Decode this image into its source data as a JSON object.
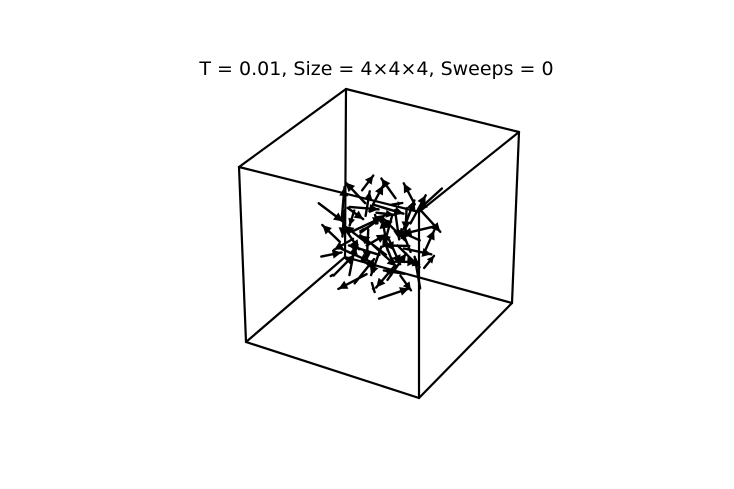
{
  "title": "T = 0.01, Size = 4×4×4, Sweeps = 0",
  "chart_data": {
    "type": "3d-quiver",
    "lattice_size": [
      4,
      4,
      4
    ],
    "temperature": 0.01,
    "sweeps": 0,
    "grid": false,
    "axes_visible": false,
    "box_visible": true,
    "line_color": "#000000",
    "spins": [
      {
        "x": 0,
        "y": 0,
        "z": 0,
        "sx": -0.48,
        "sy": 0.7,
        "sz": -0.52
      },
      {
        "x": 0,
        "y": 0,
        "z": 1,
        "sx": 0.85,
        "sy": -0.2,
        "sz": 0.48
      },
      {
        "x": 0,
        "y": 0,
        "z": 2,
        "sx": -0.3,
        "sy": -0.55,
        "sz": 0.78
      },
      {
        "x": 0,
        "y": 0,
        "z": 3,
        "sx": 0.62,
        "sy": 0.4,
        "sz": -0.67
      },
      {
        "x": 0,
        "y": 1,
        "z": 0,
        "sx": 0.2,
        "sy": 0.92,
        "sz": 0.34
      },
      {
        "x": 0,
        "y": 1,
        "z": 1,
        "sx": -0.75,
        "sy": 0.1,
        "sz": -0.65
      },
      {
        "x": 0,
        "y": 1,
        "z": 2,
        "sx": 0.4,
        "sy": -0.8,
        "sz": -0.44
      },
      {
        "x": 0,
        "y": 1,
        "z": 3,
        "sx": -0.1,
        "sy": 0.35,
        "sz": 0.93
      },
      {
        "x": 0,
        "y": 2,
        "z": 0,
        "sx": 0.95,
        "sy": 0.15,
        "sz": -0.27
      },
      {
        "x": 0,
        "y": 2,
        "z": 1,
        "sx": -0.5,
        "sy": -0.5,
        "sz": 0.71
      },
      {
        "x": 0,
        "y": 2,
        "z": 2,
        "sx": 0.15,
        "sy": 0.7,
        "sz": -0.7
      },
      {
        "x": 0,
        "y": 2,
        "z": 3,
        "sx": -0.88,
        "sy": 0.3,
        "sz": 0.37
      },
      {
        "x": 0,
        "y": 3,
        "z": 0,
        "sx": 0.3,
        "sy": -0.6,
        "sz": -0.74
      },
      {
        "x": 0,
        "y": 3,
        "z": 1,
        "sx": 0.7,
        "sy": 0.6,
        "sz": 0.39
      },
      {
        "x": 0,
        "y": 3,
        "z": 2,
        "sx": -0.35,
        "sy": 0.85,
        "sz": 0.39
      },
      {
        "x": 0,
        "y": 3,
        "z": 3,
        "sx": 0.55,
        "sy": -0.25,
        "sz": 0.8
      },
      {
        "x": 1,
        "y": 0,
        "z": 0,
        "sx": -0.65,
        "sy": -0.65,
        "sz": -0.39
      },
      {
        "x": 1,
        "y": 0,
        "z": 1,
        "sx": 0.1,
        "sy": 0.2,
        "sz": 0.97
      },
      {
        "x": 1,
        "y": 0,
        "z": 2,
        "sx": 0.8,
        "sy": -0.55,
        "sz": -0.23
      },
      {
        "x": 1,
        "y": 0,
        "z": 3,
        "sx": -0.4,
        "sy": 0.4,
        "sz": -0.82
      },
      {
        "x": 1,
        "y": 1,
        "z": 0,
        "sx": 0.45,
        "sy": 0.45,
        "sz": 0.77
      },
      {
        "x": 1,
        "y": 1,
        "z": 1,
        "sx": -0.9,
        "sy": -0.35,
        "sz": 0.26
      },
      {
        "x": 1,
        "y": 1,
        "z": 2,
        "sx": 0.25,
        "sy": -0.9,
        "sz": 0.36
      },
      {
        "x": 1,
        "y": 1,
        "z": 3,
        "sx": 0.6,
        "sy": 0.75,
        "sz": -0.28
      },
      {
        "x": 1,
        "y": 2,
        "z": 0,
        "sx": -0.2,
        "sy": -0.3,
        "sz": -0.93
      },
      {
        "x": 1,
        "y": 2,
        "z": 1,
        "sx": 0.75,
        "sy": -0.1,
        "sz": 0.65
      },
      {
        "x": 1,
        "y": 2,
        "z": 2,
        "sx": -0.55,
        "sy": 0.8,
        "sz": -0.23
      },
      {
        "x": 1,
        "y": 2,
        "z": 3,
        "sx": 0.35,
        "sy": 0.25,
        "sz": 0.9
      },
      {
        "x": 1,
        "y": 3,
        "z": 0,
        "sx": -0.7,
        "sy": 0.55,
        "sz": 0.45
      },
      {
        "x": 1,
        "y": 3,
        "z": 1,
        "sx": 0.15,
        "sy": -0.75,
        "sz": -0.64
      },
      {
        "x": 1,
        "y": 3,
        "z": 2,
        "sx": 0.9,
        "sy": 0.35,
        "sz": -0.26
      },
      {
        "x": 1,
        "y": 3,
        "z": 3,
        "sx": -0.25,
        "sy": -0.45,
        "sz": 0.86
      },
      {
        "x": 2,
        "y": 0,
        "z": 0,
        "sx": 0.55,
        "sy": -0.8,
        "sz": 0.23
      },
      {
        "x": 2,
        "y": 0,
        "z": 1,
        "sx": -0.3,
        "sy": 0.6,
        "sz": -0.74
      },
      {
        "x": 2,
        "y": 0,
        "z": 2,
        "sx": -0.8,
        "sy": -0.2,
        "sz": 0.56
      },
      {
        "x": 2,
        "y": 0,
        "z": 3,
        "sx": 0.4,
        "sy": 0.85,
        "sz": 0.34
      },
      {
        "x": 2,
        "y": 1,
        "z": 0,
        "sx": -0.1,
        "sy": -0.95,
        "sz": -0.29
      },
      {
        "x": 2,
        "y": 1,
        "z": 1,
        "sx": 0.65,
        "sy": 0.3,
        "sz": -0.7
      },
      {
        "x": 2,
        "y": 1,
        "z": 2,
        "sx": -0.45,
        "sy": 0.45,
        "sz": 0.77
      },
      {
        "x": 2,
        "y": 1,
        "z": 3,
        "sx": 0.85,
        "sy": -0.4,
        "sz": 0.34
      },
      {
        "x": 2,
        "y": 2,
        "z": 0,
        "sx": 0.3,
        "sy": 0.65,
        "sz": 0.7
      },
      {
        "x": 2,
        "y": 2,
        "z": 1,
        "sx": -0.95,
        "sy": 0.1,
        "sz": -0.29
      },
      {
        "x": 2,
        "y": 2,
        "z": 2,
        "sx": 0.5,
        "sy": -0.6,
        "sz": -0.62
      },
      {
        "x": 2,
        "y": 2,
        "z": 3,
        "sx": -0.15,
        "sy": 0.9,
        "sz": -0.41
      },
      {
        "x": 2,
        "y": 3,
        "z": 0,
        "sx": 0.7,
        "sy": 0.2,
        "sz": -0.69
      },
      {
        "x": 2,
        "y": 3,
        "z": 1,
        "sx": -0.4,
        "sy": -0.7,
        "sz": 0.59
      },
      {
        "x": 2,
        "y": 3,
        "z": 2,
        "sx": 0.2,
        "sy": 0.3,
        "sz": 0.93
      },
      {
        "x": 2,
        "y": 3,
        "z": 3,
        "sx": -0.75,
        "sy": 0.6,
        "sz": 0.28
      },
      {
        "x": 3,
        "y": 0,
        "z": 0,
        "sx": 0.8,
        "sy": 0.5,
        "sz": 0.33
      },
      {
        "x": 3,
        "y": 0,
        "z": 1,
        "sx": -0.25,
        "sy": -0.85,
        "sz": 0.46
      },
      {
        "x": 3,
        "y": 0,
        "z": 2,
        "sx": 0.35,
        "sy": 0.15,
        "sz": -0.92
      },
      {
        "x": 3,
        "y": 0,
        "z": 3,
        "sx": -0.6,
        "sy": -0.3,
        "sz": 0.74
      },
      {
        "x": 3,
        "y": 1,
        "z": 0,
        "sx": 0.05,
        "sy": 0.6,
        "sz": -0.8
      },
      {
        "x": 3,
        "y": 1,
        "z": 1,
        "sx": 0.9,
        "sy": -0.25,
        "sz": 0.36
      },
      {
        "x": 3,
        "y": 1,
        "z": 2,
        "sx": -0.7,
        "sy": 0.65,
        "sz": 0.3
      },
      {
        "x": 3,
        "y": 1,
        "z": 3,
        "sx": 0.45,
        "sy": -0.85,
        "sz": -0.27
      },
      {
        "x": 3,
        "y": 2,
        "z": 0,
        "sx": -0.35,
        "sy": 0.25,
        "sz": 0.9
      },
      {
        "x": 3,
        "y": 2,
        "z": 1,
        "sx": 0.6,
        "sy": 0.7,
        "sz": -0.39
      },
      {
        "x": 3,
        "y": 2,
        "z": 2,
        "sx": -0.85,
        "sy": -0.45,
        "sz": -0.27
      },
      {
        "x": 3,
        "y": 2,
        "z": 3,
        "sx": 0.25,
        "sy": 0.5,
        "sz": 0.83
      },
      {
        "x": 3,
        "y": 3,
        "z": 0,
        "sx": 0.55,
        "sy": -0.35,
        "sz": 0.76
      },
      {
        "x": 3,
        "y": 3,
        "z": 1,
        "sx": -0.2,
        "sy": 0.95,
        "sz": 0.24
      },
      {
        "x": 3,
        "y": 3,
        "z": 2,
        "sx": 0.75,
        "sy": 0.05,
        "sz": -0.66
      },
      {
        "x": 3,
        "y": 3,
        "z": 3,
        "sx": -0.5,
        "sy": -0.6,
        "sz": -0.62
      }
    ]
  }
}
